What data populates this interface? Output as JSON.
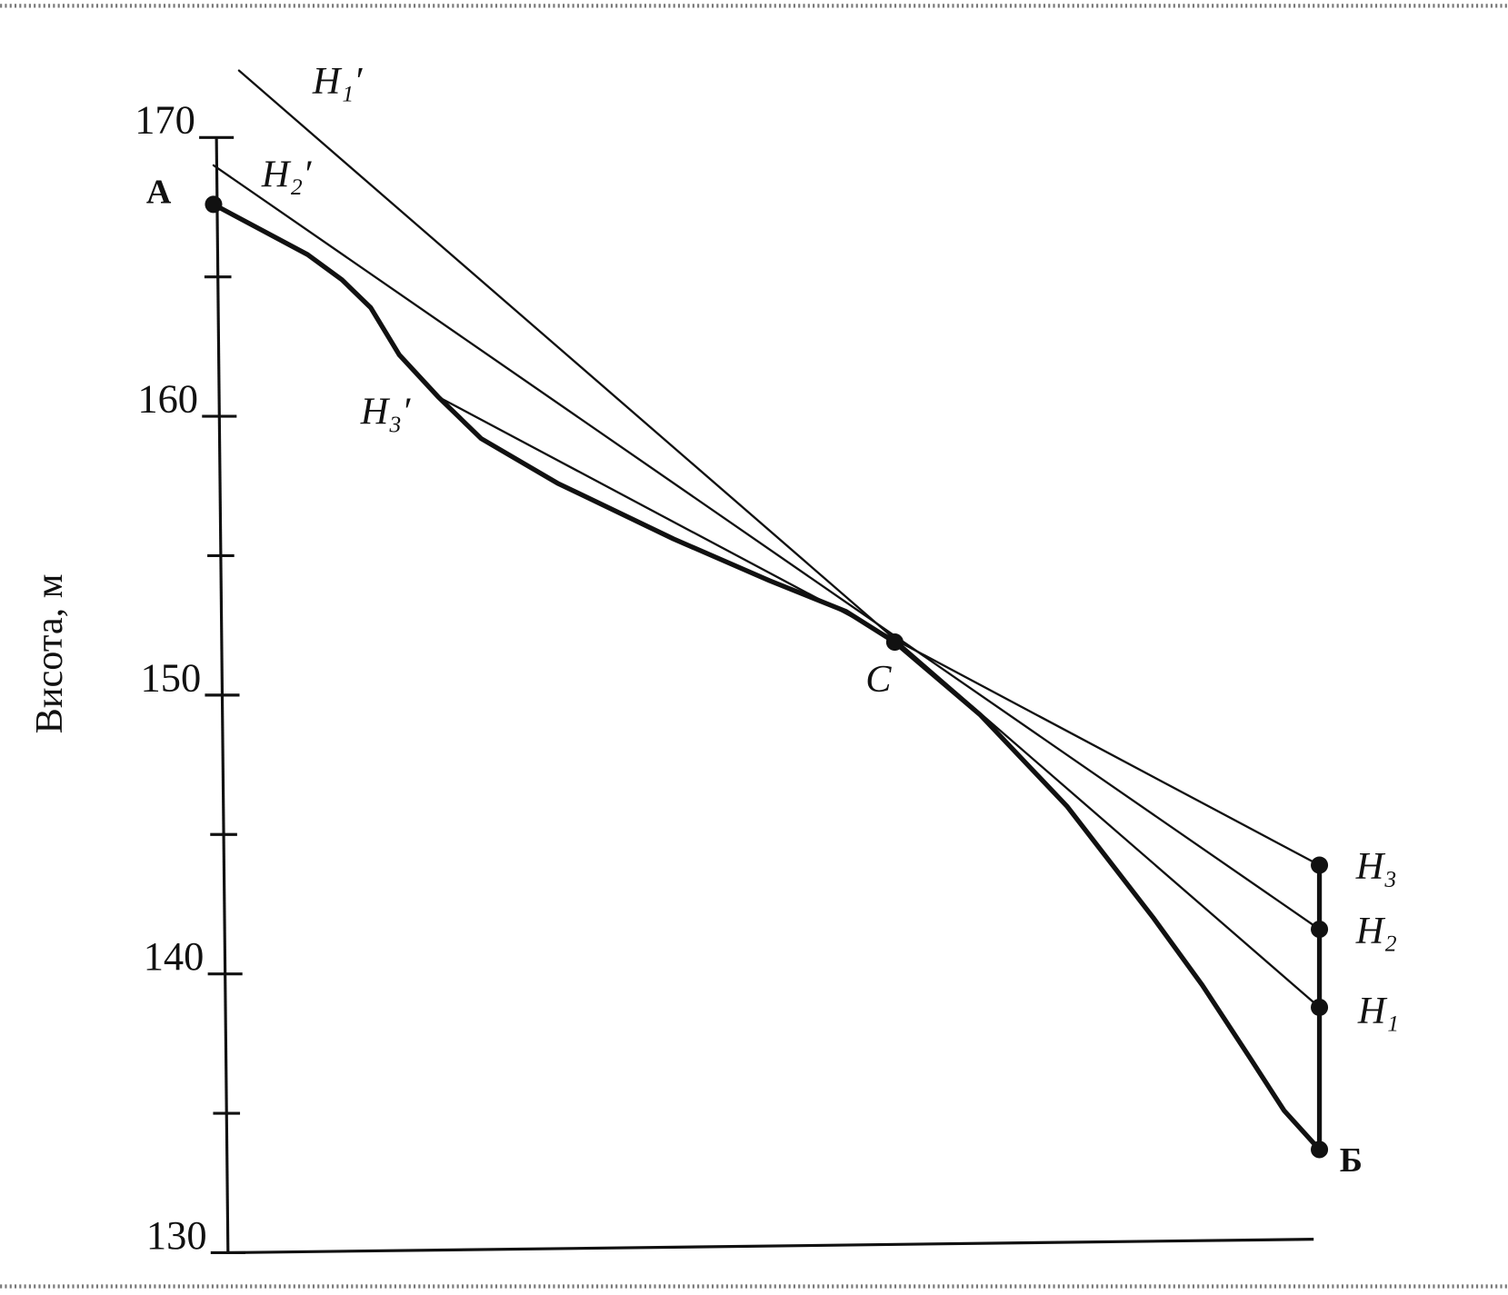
{
  "chart_data": {
    "type": "line",
    "ylabel": "Висота, м",
    "ylim": [
      130,
      170
    ],
    "yticks": [
      130,
      140,
      150,
      160,
      170
    ],
    "minor_yticks": [
      135,
      145,
      155,
      165
    ],
    "xlim": [
      0,
      100
    ],
    "color": "#111111",
    "series": [
      {
        "style": "bold",
        "x": [
          0,
          8.5,
          11.6,
          14.2,
          16.8,
          20.3,
          24.2,
          31.1,
          41.6,
          50.3,
          57.2,
          61.6,
          69.3,
          77.2,
          85.0,
          89.4,
          93.7,
          96.8,
          100
        ],
        "values": [
          167.6,
          165.8,
          164.9,
          163.9,
          162.2,
          160.7,
          159.2,
          157.6,
          155.6,
          154.1,
          153.0,
          151.9,
          149.3,
          146.0,
          142.0,
          139.6,
          137.0,
          135.1,
          133.7
        ]
      },
      {
        "style": "thin",
        "x": [
          2.3,
          100
        ],
        "values": [
          172.4,
          138.8
        ]
      },
      {
        "style": "thin",
        "x": [
          0,
          100
        ],
        "values": [
          169.0,
          141.6
        ]
      },
      {
        "style": "thin",
        "x": [
          20.3,
          100
        ],
        "values": [
          160.7,
          143.9
        ]
      },
      {
        "style": "bold",
        "x": [
          100,
          100
        ],
        "values": [
          133.7,
          143.9
        ]
      },
      {
        "style": "markers",
        "x": [
          0,
          61.6,
          100,
          100,
          100,
          100
        ],
        "values": [
          167.6,
          151.9,
          133.7,
          138.8,
          141.6,
          143.9
        ]
      }
    ],
    "annotations": [
      "H₁′",
      "H₂′",
      "H₃′",
      "A",
      "C",
      "H₃",
      "H₂",
      "H₁",
      "Б"
    ]
  }
}
